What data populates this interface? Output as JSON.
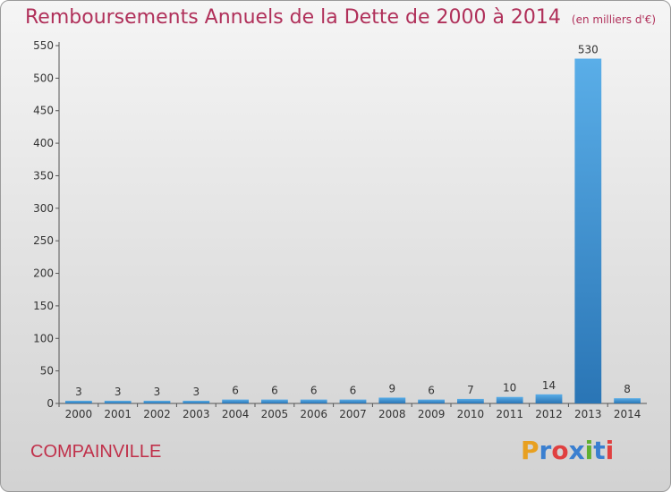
{
  "header": {
    "title": "Remboursements Annuels de la Dette de 2000 à 2014",
    "subtitle": "(en milliers d'€)"
  },
  "footer": {
    "city": "COMPAINVILLE",
    "logo_letters": [
      "P",
      "r",
      "o",
      "x",
      "i",
      "t",
      "i"
    ],
    "logo_colors": [
      "#e8a020",
      "#3a7fd0",
      "#e04040",
      "#3a7fd0",
      "#60b030",
      "#3a7fd0",
      "#e04040"
    ]
  },
  "chart_data": {
    "type": "bar",
    "categories": [
      "2000",
      "2001",
      "2002",
      "2003",
      "2004",
      "2005",
      "2006",
      "2007",
      "2008",
      "2009",
      "2010",
      "2011",
      "2012",
      "2013",
      "2014"
    ],
    "values": [
      3,
      3,
      3,
      3,
      6,
      6,
      6,
      6,
      9,
      6,
      7,
      10,
      14,
      530,
      8
    ],
    "data_labels": [
      "3",
      "3",
      "3",
      "3",
      "6",
      "6",
      "6",
      "6",
      "9",
      "6",
      "7",
      "10",
      "14",
      "530",
      "8"
    ],
    "ylim": [
      0,
      550
    ],
    "yticks": [
      0,
      50,
      100,
      150,
      200,
      250,
      300,
      350,
      400,
      450,
      500,
      550
    ],
    "grid": false,
    "bar_color_top": "#5aaee8",
    "bar_color_bottom": "#2a75b5"
  }
}
